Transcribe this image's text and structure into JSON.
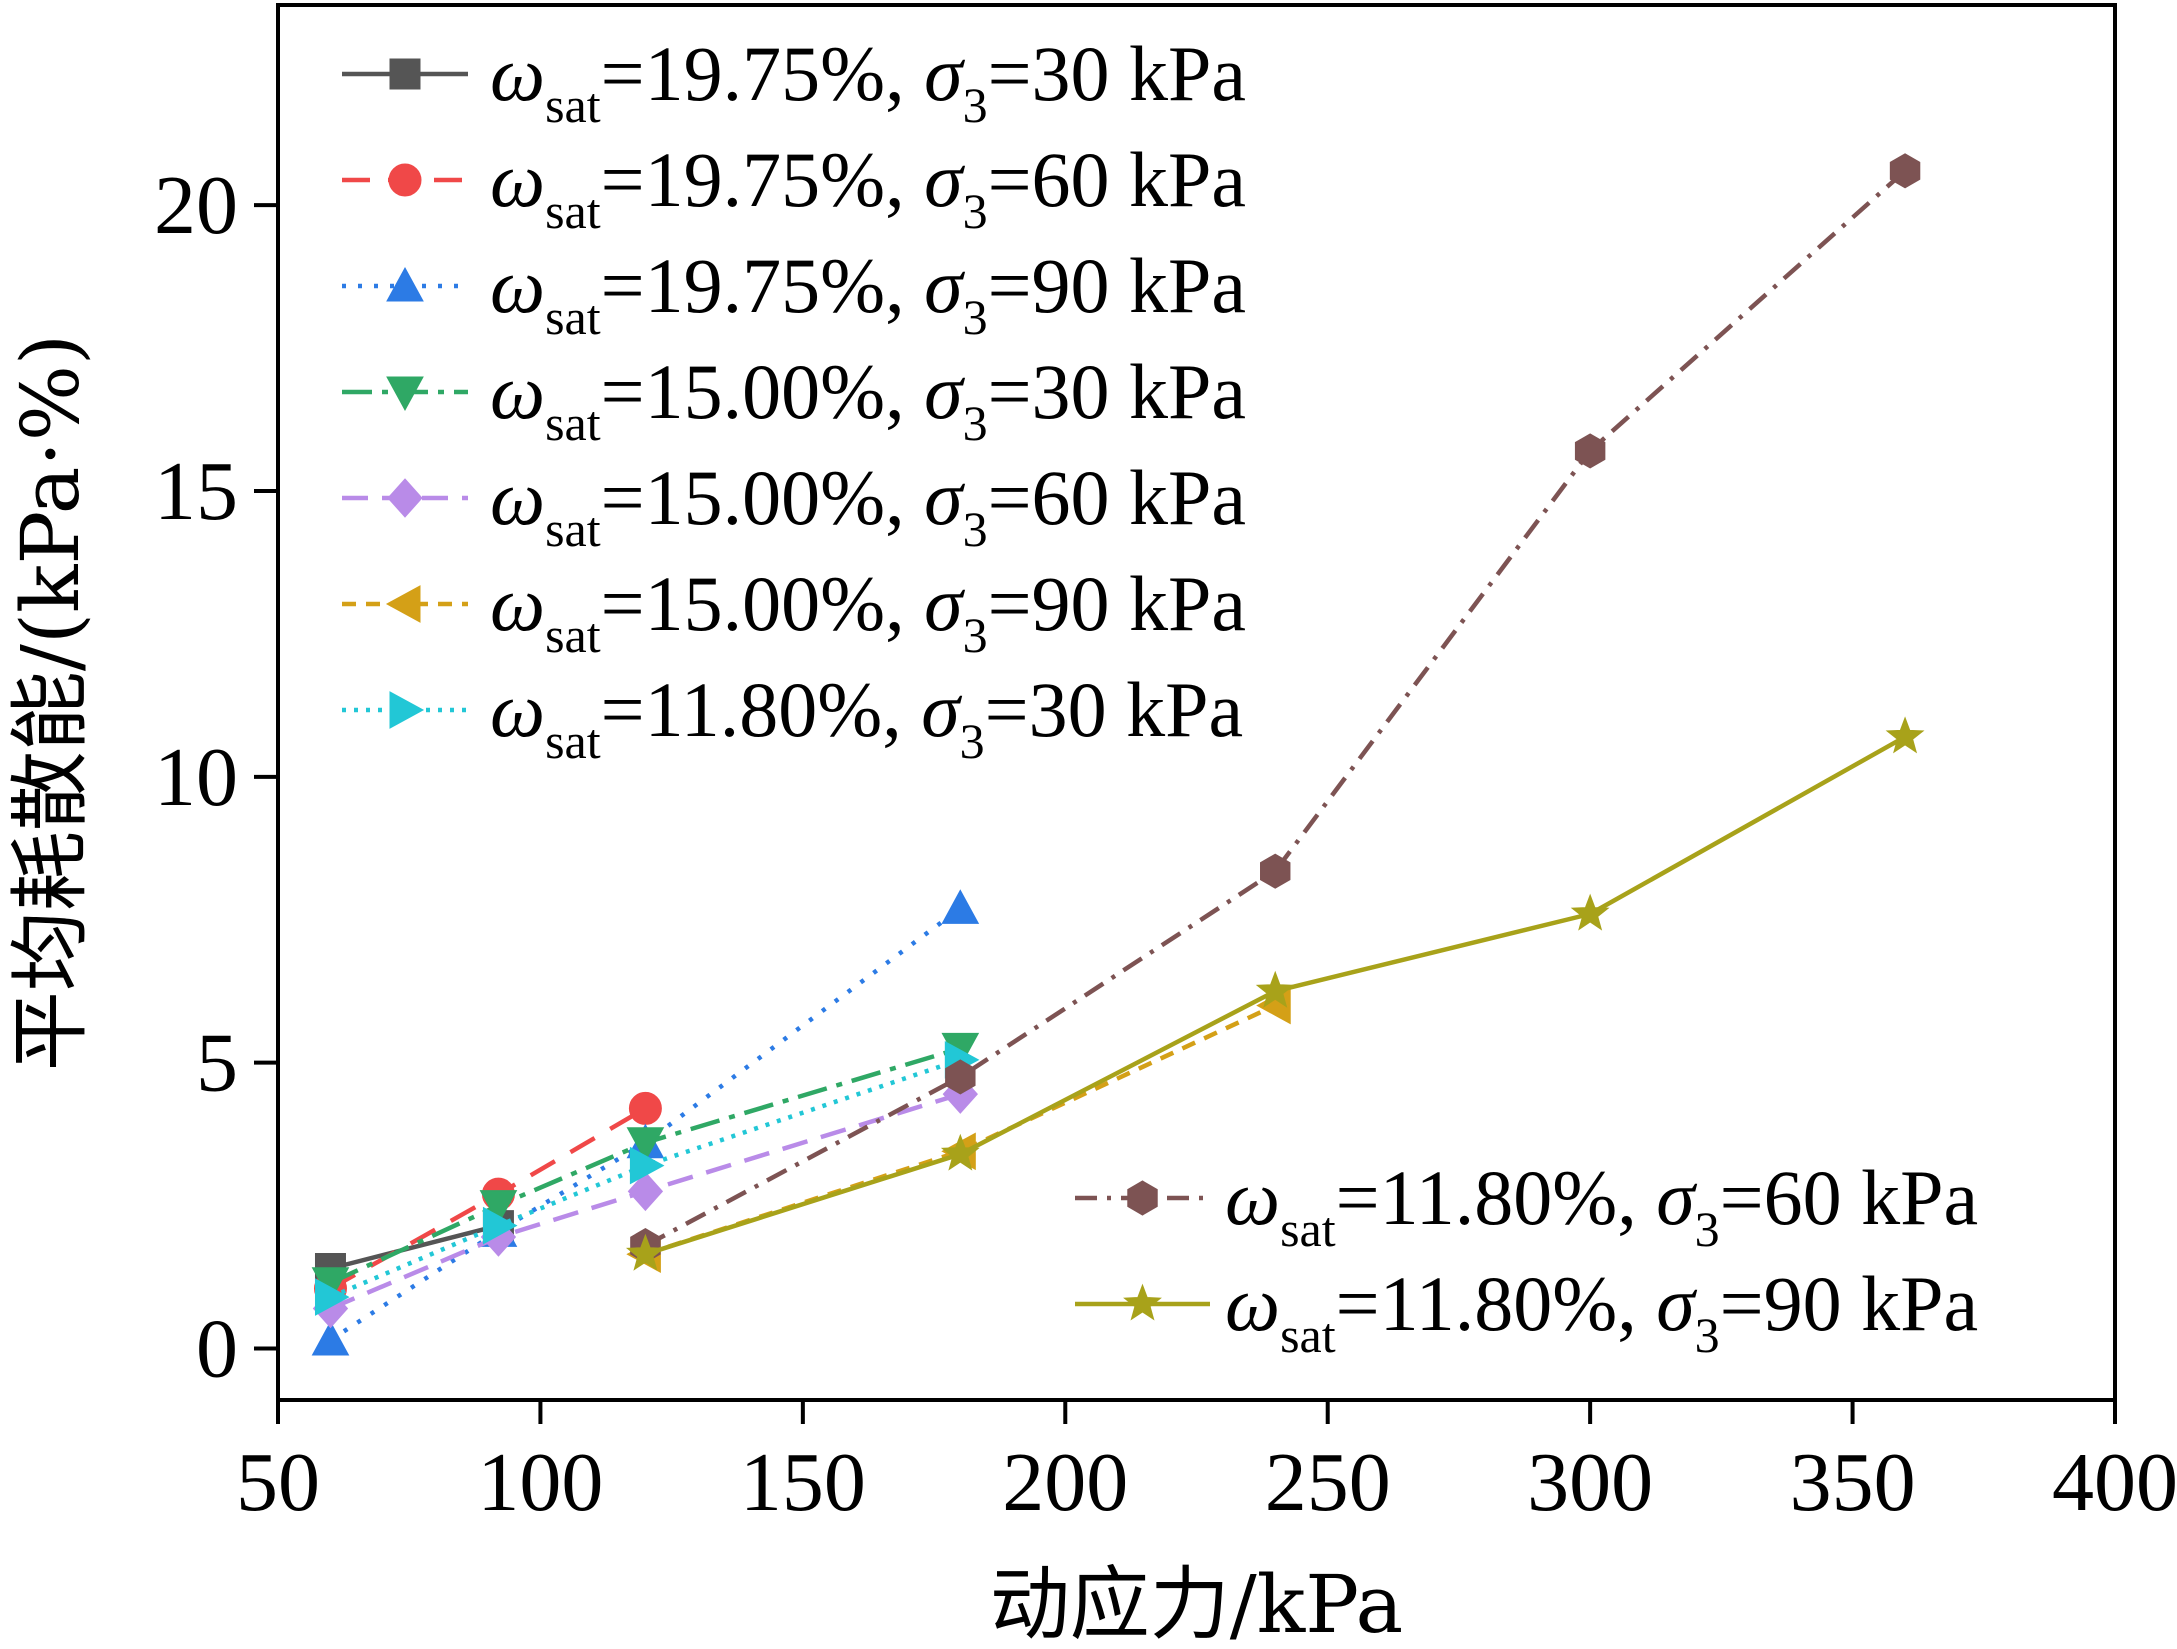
{
  "chart_data": {
    "type": "line",
    "title": "",
    "xlabel": "动应力/kPa",
    "ylabel": "平均耗散能/(kPa·%)",
    "xlim": [
      50,
      400
    ],
    "ylim": [
      -0.9,
      23.5
    ],
    "xticks": [
      50,
      100,
      150,
      200,
      250,
      300,
      350,
      400
    ],
    "yticks": [
      0,
      5,
      10,
      15,
      20
    ],
    "grid": false,
    "legend_placement": [
      "top-left",
      "bottom-right"
    ],
    "series": [
      {
        "name": "ωsat=19.75%, σ3=30 kPa",
        "label": {
          "sym1": "ω",
          "sub1": "sat",
          "mid": "=19.75%,  ",
          "sym2": "σ",
          "sub2": "3",
          "end": "=30 kPa"
        },
        "color": "#555555",
        "dash": "",
        "marker": "square",
        "legend_group": "top-left",
        "points": [
          [
            60,
            1.4
          ],
          [
            92,
            2.15
          ]
        ]
      },
      {
        "name": "ωsat=19.75%, σ3=60 kPa",
        "label": {
          "sym1": "ω",
          "sub1": "sat",
          "mid": "=19.75%,  ",
          "sym2": "σ",
          "sub2": "3",
          "end": "=60 kPa"
        },
        "color": "#f04848",
        "dash": "28,18",
        "marker": "circle",
        "legend_group": "top-left",
        "points": [
          [
            60,
            1.05
          ],
          [
            92,
            2.7
          ],
          [
            120,
            4.2
          ]
        ]
      },
      {
        "name": "ωsat=19.75%, σ3=90 kPa",
        "label": {
          "sym1": "ω",
          "sub1": "sat",
          "mid": "=19.75%,  ",
          "sym2": "σ",
          "sub2": "3",
          "end": "=90 kPa"
        },
        "color": "#2c7be5",
        "dash": "4,12",
        "marker": "triangle-up",
        "legend_group": "top-left",
        "points": [
          [
            60,
            0.15
          ],
          [
            92,
            2.05
          ],
          [
            120,
            3.6
          ],
          [
            180,
            7.7
          ]
        ]
      },
      {
        "name": "ωsat=15.00%, σ3=30 kPa",
        "label": {
          "sym1": "ω",
          "sub1": "sat",
          "mid": "=15.00%,  ",
          "sym2": "σ",
          "sub2": "3",
          "end": "=30 kPa"
        },
        "color": "#2fa865",
        "dash": "30,10,6,10",
        "marker": "triangle-down",
        "legend_group": "top-left",
        "points": [
          [
            60,
            1.15
          ],
          [
            92,
            2.5
          ],
          [
            120,
            3.6
          ],
          [
            180,
            5.25
          ]
        ]
      },
      {
        "name": "ωsat=15.00%, σ3=60 kPa",
        "label": {
          "sym1": "ω",
          "sub1": "sat",
          "mid": "=15.00%,  ",
          "sym2": "σ",
          "sub2": "3",
          "end": "=60 kPa"
        },
        "color": "#b98be8",
        "dash": "26,14",
        "marker": "diamond",
        "legend_group": "top-left",
        "points": [
          [
            60,
            0.7
          ],
          [
            92,
            1.95
          ],
          [
            120,
            2.75
          ],
          [
            180,
            4.45
          ]
        ]
      },
      {
        "name": "ωsat=15.00%, σ3=90 kPa",
        "label": {
          "sym1": "ω",
          "sub1": "sat",
          "mid": "=15.00%,  ",
          "sym2": "σ",
          "sub2": "3",
          "end": "=90 kPa"
        },
        "color": "#d4a017",
        "dash": "14,10",
        "marker": "triangle-left",
        "legend_group": "top-left",
        "points": [
          [
            120,
            1.65
          ],
          [
            180,
            3.45
          ],
          [
            240,
            6.0
          ]
        ]
      },
      {
        "name": "ωsat=11.80%, σ3=30 kPa",
        "label": {
          "sym1": "ω",
          "sub1": "sat",
          "mid": "=11.80%,  ",
          "sym2": "σ",
          "sub2": "3",
          "end": "=30 kPa"
        },
        "color": "#22c7d6",
        "dash": "4,8",
        "marker": "triangle-right",
        "legend_group": "top-left",
        "points": [
          [
            60,
            0.9
          ],
          [
            92,
            2.15
          ],
          [
            120,
            3.2
          ],
          [
            180,
            5.05
          ]
        ]
      },
      {
        "name": "ωsat=11.80%, σ3=60 kPa",
        "label": {
          "sym1": "ω",
          "sub1": "sat",
          "mid": "=11.80%,  ",
          "sym2": "σ",
          "sub2": "3",
          "end": "=60 kPa"
        },
        "color": "#7d5353",
        "dash": "22,10,4,10",
        "marker": "hexagon",
        "legend_group": "bottom-right",
        "points": [
          [
            120,
            1.8
          ],
          [
            180,
            4.75
          ],
          [
            240,
            8.35
          ],
          [
            300,
            15.7
          ],
          [
            360,
            20.6
          ]
        ]
      },
      {
        "name": "ωsat=11.80%, σ3=90 kPa",
        "label": {
          "sym1": "ω",
          "sub1": "sat",
          "mid": "=11.80%,  ",
          "sym2": "σ",
          "sub2": "3",
          "end": "=90 kPa"
        },
        "color": "#a8a21a",
        "dash": "",
        "marker": "star",
        "legend_group": "bottom-right",
        "points": [
          [
            120,
            1.65
          ],
          [
            180,
            3.4
          ],
          [
            240,
            6.25
          ],
          [
            300,
            7.6
          ],
          [
            360,
            10.7
          ]
        ]
      }
    ]
  }
}
